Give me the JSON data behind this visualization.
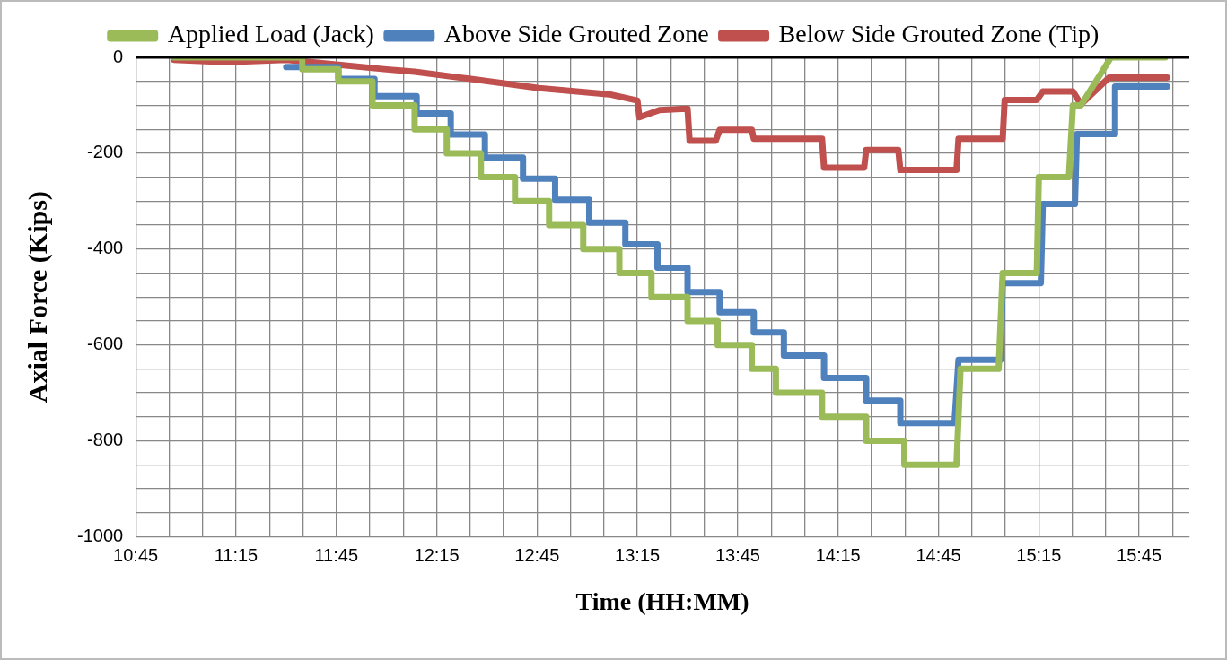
{
  "chart_data": {
    "type": "line",
    "xlabel": "Time (HH:MM)",
    "ylabel": "Axial Force (Kips)",
    "xlim": [
      10.75,
      16.0
    ],
    "xticks": [
      {
        "value": 10.75,
        "label": "10:45"
      },
      {
        "value": 10.9167,
        "label": null
      },
      {
        "value": 11.0833,
        "label": null
      },
      {
        "value": 11.25,
        "label": "11:15"
      },
      {
        "value": 11.4167,
        "label": null
      },
      {
        "value": 11.5833,
        "label": null
      },
      {
        "value": 11.75,
        "label": "11:45"
      },
      {
        "value": 11.9167,
        "label": null
      },
      {
        "value": 12.0833,
        "label": null
      },
      {
        "value": 12.25,
        "label": "12:15"
      },
      {
        "value": 12.4167,
        "label": null
      },
      {
        "value": 12.5833,
        "label": null
      },
      {
        "value": 12.75,
        "label": "12:45"
      },
      {
        "value": 12.9167,
        "label": null
      },
      {
        "value": 13.0833,
        "label": null
      },
      {
        "value": 13.25,
        "label": "13:15"
      },
      {
        "value": 13.4167,
        "label": null
      },
      {
        "value": 13.5833,
        "label": null
      },
      {
        "value": 13.75,
        "label": "13:45"
      },
      {
        "value": 13.9167,
        "label": null
      },
      {
        "value": 14.0833,
        "label": null
      },
      {
        "value": 14.25,
        "label": "14:15"
      },
      {
        "value": 14.4167,
        "label": null
      },
      {
        "value": 14.5833,
        "label": null
      },
      {
        "value": 14.75,
        "label": "14:45"
      },
      {
        "value": 14.9167,
        "label": null
      },
      {
        "value": 15.0833,
        "label": null
      },
      {
        "value": 15.25,
        "label": "15:15"
      },
      {
        "value": 15.4167,
        "label": null
      },
      {
        "value": 15.5833,
        "label": null
      },
      {
        "value": 15.75,
        "label": "15:45"
      },
      {
        "value": 15.9167,
        "label": null
      }
    ],
    "ylim": [
      -1000,
      0
    ],
    "yticks": [
      -1000,
      {
        "value": -950,
        "label": null
      },
      {
        "value": -900,
        "label": null
      },
      {
        "value": -850,
        "label": null
      },
      -800,
      {
        "value": -750,
        "label": null
      },
      {
        "value": -700,
        "label": null
      },
      {
        "value": -650,
        "label": null
      },
      -600,
      {
        "value": -550,
        "label": null
      },
      {
        "value": -500,
        "label": null
      },
      {
        "value": -450,
        "label": null
      },
      -400,
      {
        "value": -350,
        "label": null
      },
      {
        "value": -300,
        "label": null
      },
      {
        "value": -250,
        "label": null
      },
      -200,
      {
        "value": -150,
        "label": null
      },
      {
        "value": -100,
        "label": null
      },
      {
        "value": -50,
        "label": null
      },
      0
    ],
    "grid": true,
    "legend": "top",
    "marker": "none",
    "line_style": "solid",
    "ref_lines": [
      {
        "axis": "y",
        "value": 0,
        "color": "#000000"
      }
    ],
    "series": [
      {
        "name": "Applied Load (Jack)",
        "color": "#9bbb59",
        "x": [
          10.94,
          11.58,
          11.58,
          11.76,
          11.76,
          11.93,
          11.93,
          12.14,
          12.14,
          12.3,
          12.3,
          12.47,
          12.47,
          12.64,
          12.64,
          12.81,
          12.81,
          12.98,
          12.98,
          13.16,
          13.16,
          13.32,
          13.32,
          13.5,
          13.5,
          13.65,
          13.65,
          13.82,
          13.82,
          13.94,
          13.94,
          14.17,
          14.17,
          14.39,
          14.39,
          14.58,
          14.58,
          14.84,
          14.86,
          15.05,
          15.07,
          15.24,
          15.25,
          15.4,
          15.42,
          15.46,
          15.61,
          15.88
        ],
        "values": [
          0,
          0,
          -25,
          -25,
          -50,
          -50,
          -100,
          -100,
          -150,
          -150,
          -200,
          -200,
          -250,
          -250,
          -300,
          -300,
          -350,
          -350,
          -400,
          -400,
          -450,
          -450,
          -500,
          -500,
          -550,
          -550,
          -600,
          -600,
          -650,
          -650,
          -700,
          -700,
          -750,
          -750,
          -800,
          -800,
          -850,
          -850,
          -650,
          -650,
          -450,
          -450,
          -250,
          -250,
          -100,
          -100,
          0,
          0
        ]
      },
      {
        "name": "Above Side Grouted Zone",
        "color": "#4f81bd",
        "x": [
          11.5,
          11.76,
          11.76,
          11.94,
          11.94,
          12.15,
          12.15,
          12.32,
          12.32,
          12.49,
          12.49,
          12.68,
          12.68,
          12.84,
          12.84,
          13.01,
          13.01,
          13.19,
          13.19,
          13.35,
          13.35,
          13.5,
          13.5,
          13.66,
          13.66,
          13.83,
          13.83,
          13.98,
          13.98,
          14.18,
          14.18,
          14.39,
          14.39,
          14.56,
          14.56,
          14.83,
          14.85,
          15.06,
          15.07,
          15.26,
          15.27,
          15.43,
          15.44,
          15.63,
          15.63,
          15.89
        ],
        "values": [
          -20,
          -20,
          -45,
          -45,
          -81,
          -81,
          -117,
          -117,
          -161,
          -161,
          -209,
          -209,
          -253,
          -253,
          -297,
          -297,
          -345,
          -345,
          -390,
          -390,
          -439,
          -439,
          -490,
          -490,
          -532,
          -532,
          -574,
          -574,
          -622,
          -622,
          -669,
          -669,
          -716,
          -716,
          -763,
          -763,
          -631,
          -631,
          -471,
          -471,
          -306,
          -306,
          -160,
          -160,
          -61,
          -61
        ]
      },
      {
        "name": "Below Side Grouted Zone (Tip)",
        "color": "#c0504d",
        "x": [
          10.94,
          11.2,
          11.5,
          11.75,
          12.0,
          12.14,
          12.42,
          12.76,
          13.11,
          13.25,
          13.26,
          13.36,
          13.5,
          13.51,
          13.64,
          13.66,
          13.82,
          13.83,
          14.17,
          14.18,
          14.38,
          14.39,
          14.55,
          14.56,
          14.84,
          14.85,
          15.07,
          15.08,
          15.24,
          15.27,
          15.42,
          15.46,
          15.6,
          15.89
        ],
        "values": [
          -5,
          -10,
          -5,
          -15,
          -25,
          -30,
          -45,
          -64,
          -77,
          -90,
          -125,
          -110,
          -107,
          -174,
          -174,
          -151,
          -151,
          -170,
          -170,
          -230,
          -230,
          -193,
          -193,
          -235,
          -235,
          -170,
          -170,
          -89,
          -89,
          -71,
          -71,
          -98,
          -42,
          -42
        ]
      }
    ]
  }
}
